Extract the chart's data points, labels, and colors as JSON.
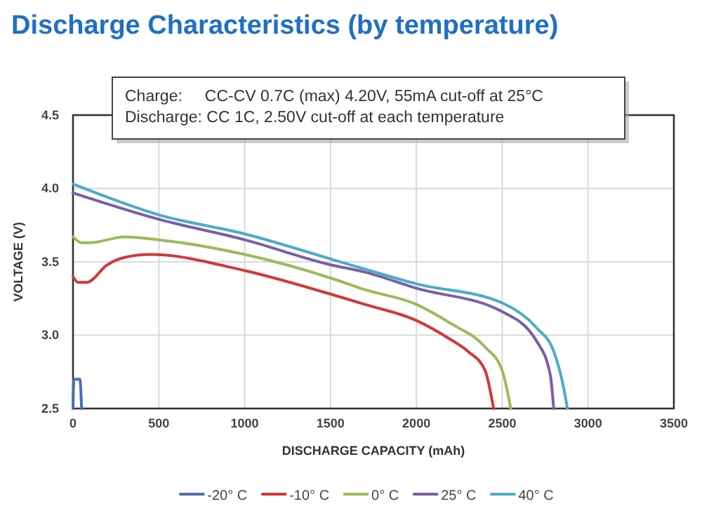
{
  "chart_data": {
    "type": "line",
    "title": "Discharge Characteristics (by temperature)",
    "xlabel": "DISCHARGE CAPACITY (mAh)",
    "ylabel": "VOLTAGE (V)",
    "annotations": [
      "Charge:     CC-CV 0.7C (max) 4.20V, 55mA cut-off at 25°C",
      "Discharge: CC 1C, 2.50V cut-off at each temperature"
    ],
    "xlim": [
      0,
      3500
    ],
    "xticks": [
      0,
      500,
      1000,
      1500,
      2000,
      2500,
      3000,
      3500
    ],
    "ylim": [
      2.5,
      4.5
    ],
    "yticks": [
      {
        "value": 2.5,
        "label": "2.5"
      },
      {
        "value": 3,
        "label": "3.0"
      },
      {
        "value": 3.5,
        "label": "3.5"
      },
      {
        "value": 4,
        "label": "4.0"
      },
      {
        "value": 4.5,
        "label": "4.5"
      }
    ],
    "grid": true,
    "legend": "bottom",
    "line_style": "solid",
    "marker": "none",
    "series": [
      {
        "name": "-20° C",
        "color": "#4a6fb3",
        "x": [
          0,
          5,
          40,
          50
        ],
        "values": [
          2.5,
          2.7,
          2.7,
          2.5
        ]
      },
      {
        "name": "-10° C",
        "color": "#d0393a",
        "x": [
          0,
          30,
          80,
          200,
          300,
          450,
          1000,
          1500,
          1700,
          2000,
          2200,
          2300,
          2400,
          2450
        ],
        "values": [
          3.4,
          3.36,
          3.36,
          3.48,
          3.53,
          3.55,
          3.44,
          3.28,
          3.21,
          3.1,
          2.97,
          2.89,
          2.76,
          2.5
        ]
      },
      {
        "name": "0° C",
        "color": "#9bbb59",
        "x": [
          0,
          50,
          100,
          300,
          500,
          1000,
          1500,
          1700,
          2000,
          2200,
          2400,
          2500,
          2550
        ],
        "values": [
          3.67,
          3.63,
          3.63,
          3.67,
          3.65,
          3.55,
          3.39,
          3.31,
          3.21,
          3.08,
          2.92,
          2.76,
          2.5
        ]
      },
      {
        "name": "25° C",
        "color": "#7b5ea7",
        "x": [
          0,
          500,
          1000,
          1500,
          1700,
          2000,
          2500,
          2700,
          2780,
          2800
        ],
        "values": [
          3.97,
          3.79,
          3.65,
          3.48,
          3.43,
          3.32,
          3.16,
          2.96,
          2.73,
          2.5
        ]
      },
      {
        "name": "40° C",
        "color": "#4bacc6",
        "x": [
          0,
          500,
          1000,
          1500,
          1700,
          2000,
          2500,
          2700,
          2800,
          2860,
          2880
        ],
        "values": [
          4.03,
          3.82,
          3.69,
          3.52,
          3.45,
          3.35,
          3.22,
          3.05,
          2.89,
          2.63,
          2.5
        ]
      }
    ]
  }
}
